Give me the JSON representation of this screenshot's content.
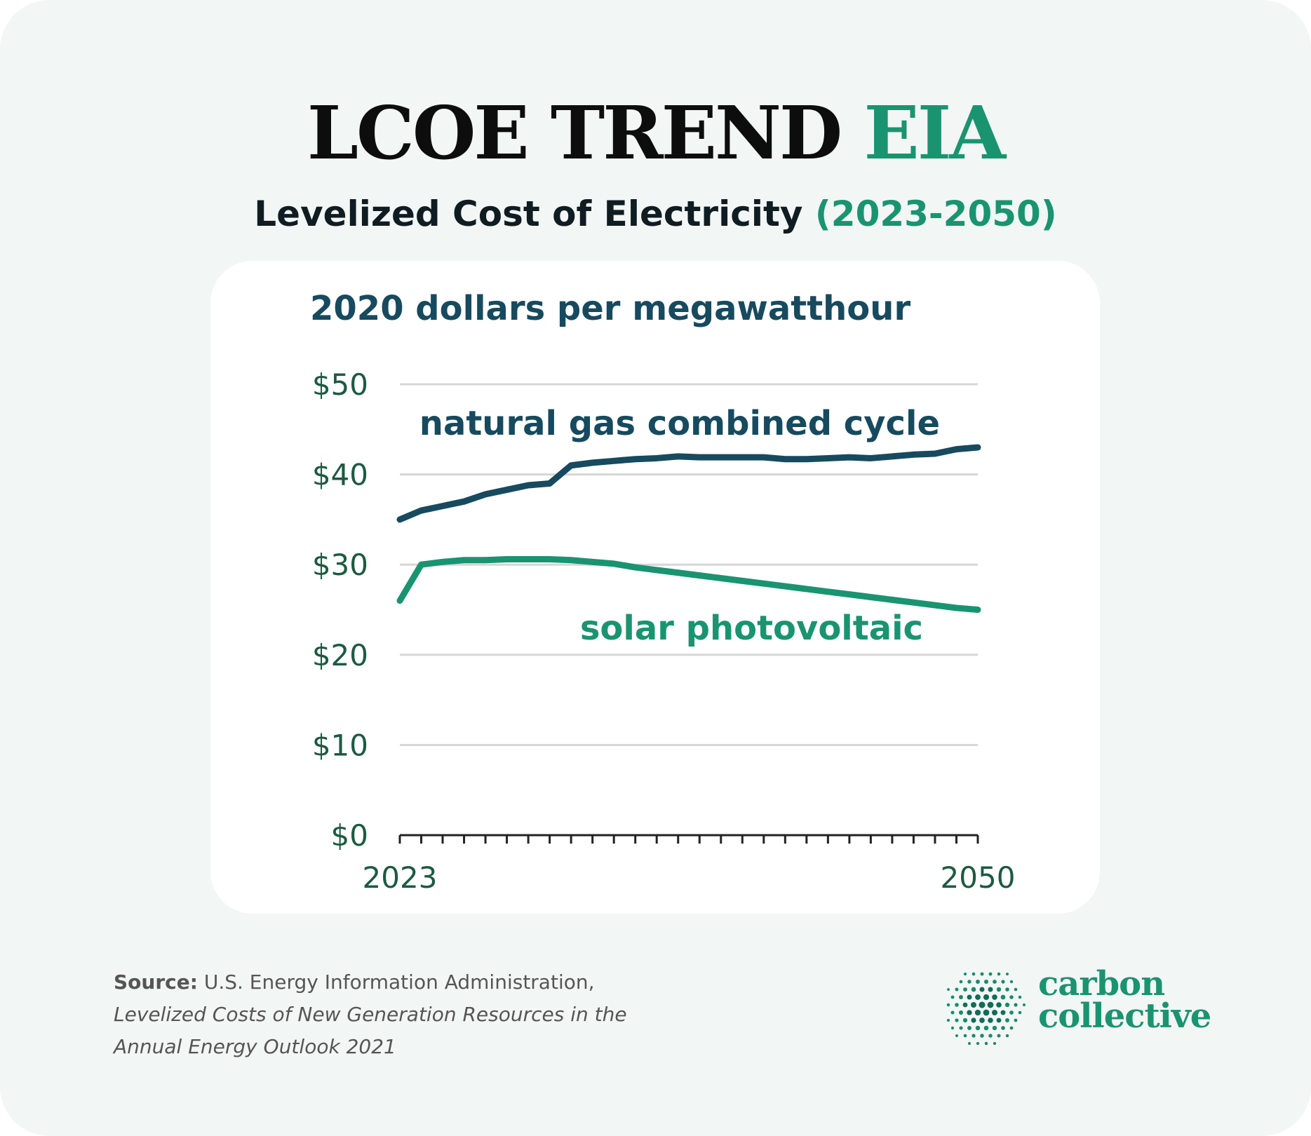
{
  "header": {
    "title_main": "LCOE TREND",
    "title_accent": "EIA",
    "subtitle_main": "Levelized Cost of Electricity",
    "subtitle_accent": "(2023-2050)"
  },
  "colors": {
    "accent": "#1a9470",
    "gas": "#174a5e",
    "solar": "#1a9470",
    "tick_text": "#1d5a40"
  },
  "chart_data": {
    "type": "line",
    "ylabel": "2020 dollars per megawatthour",
    "x": [
      2023,
      2024,
      2025,
      2026,
      2027,
      2028,
      2029,
      2030,
      2031,
      2032,
      2033,
      2034,
      2035,
      2036,
      2037,
      2038,
      2039,
      2040,
      2041,
      2042,
      2043,
      2044,
      2045,
      2046,
      2047,
      2048,
      2049,
      2050
    ],
    "xtick_labels": [
      "2023",
      "2050"
    ],
    "ytick_labels": [
      "$0",
      "$10",
      "$20",
      "$30",
      "$40",
      "$50"
    ],
    "yticks": [
      0,
      10,
      20,
      30,
      40,
      50
    ],
    "ylim": [
      0,
      50
    ],
    "xlim": [
      2023,
      2050
    ],
    "grid": true,
    "series": [
      {
        "name": "natural gas combined cycle",
        "color": "#174a5e",
        "values": [
          35,
          36,
          36.5,
          37,
          37.8,
          38.3,
          38.8,
          39,
          41,
          41.3,
          41.5,
          41.7,
          41.8,
          42,
          41.9,
          41.9,
          41.9,
          41.9,
          41.7,
          41.7,
          41.8,
          41.9,
          41.8,
          42,
          42.2,
          42.3,
          42.8,
          43
        ]
      },
      {
        "name": "solar photovoltaic",
        "color": "#1a9470",
        "values": [
          26,
          30,
          30.3,
          30.5,
          30.5,
          30.6,
          30.6,
          30.6,
          30.5,
          30.3,
          30.1,
          29.7,
          29.4,
          29.1,
          28.8,
          28.5,
          28.2,
          27.9,
          27.6,
          27.3,
          27,
          26.7,
          26.4,
          26.1,
          25.8,
          25.5,
          25.2,
          25
        ]
      }
    ]
  },
  "source": {
    "label": "Source:",
    "text": " U.S. Energy Information Administration,",
    "italic_line1": "Levelized Costs of New Generation Resources in the",
    "italic_line2": "Annual Energy Outlook 2021"
  },
  "logo": {
    "line1": "carbon",
    "line2": "collective"
  }
}
